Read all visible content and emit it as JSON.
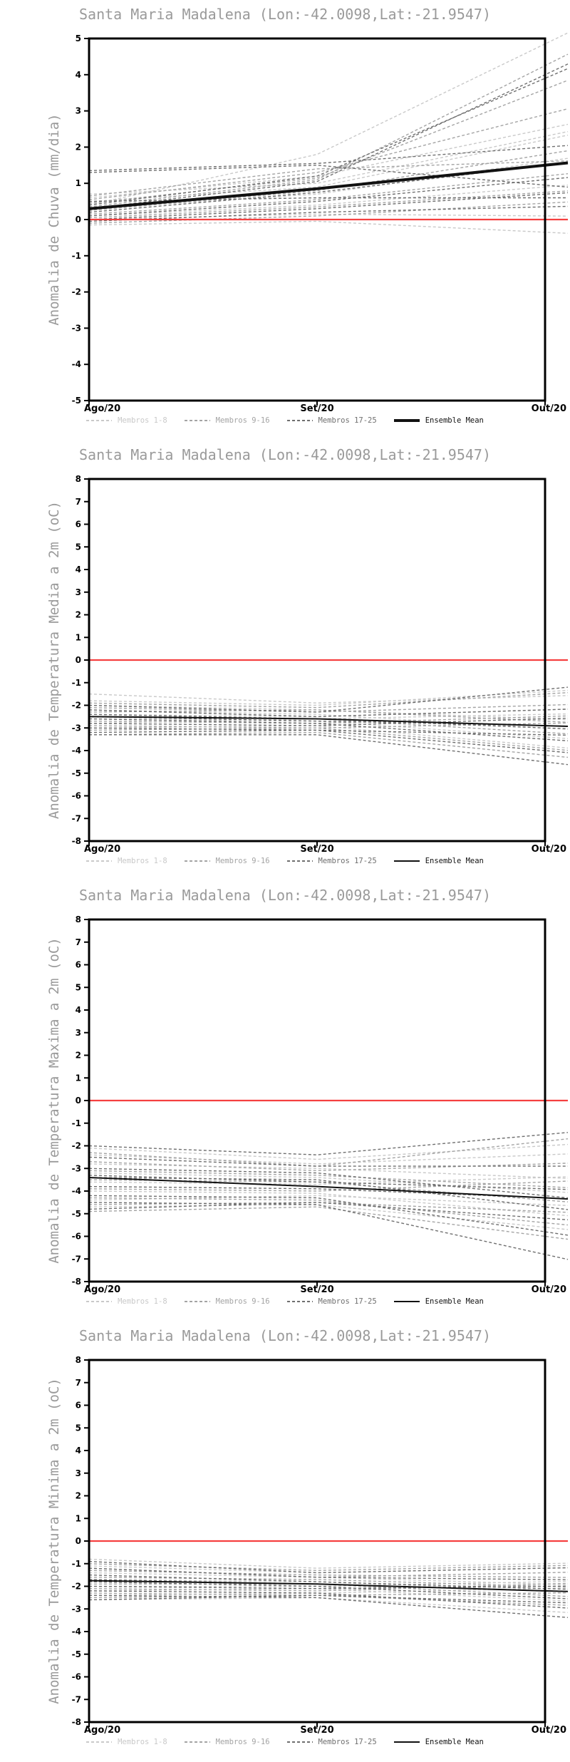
{
  "colors": {
    "background": "#ffffff",
    "title_text": "#9a9a9a",
    "ylabel_text": "#9a9a9a",
    "tick_text": "#000000",
    "axis_box": "#000000",
    "zero_line": "#f54040",
    "members_1_8": "#c9c9c9",
    "members_9_16": "#a4a4a4",
    "members_17_25": "#6f6f6f",
    "ensemble_mean": "#111111"
  },
  "chart_data": [
    {
      "type": "line",
      "title": "Santa Maria Madalena (Lon:-42.0098,Lat:-21.9547)",
      "ylabel": "Anomalia de Chuva (mm/dia)",
      "categories": [
        "Ago/20",
        "Set/20",
        "Out/20"
      ],
      "ylim": [
        -5,
        5
      ],
      "ytick_step": 1,
      "zero_line": 0,
      "grid": false,
      "legend_position": "bottom",
      "legend": [
        "Membros 1-8",
        "Membros 9-16",
        "Membros 17-25",
        "Ensemble Mean"
      ],
      "mean_line_width": 4,
      "groups": [
        {
          "name": "Membros 1-8",
          "series": [
            [
              0.4,
              1.8,
              4.85
            ],
            [
              0.6,
              1.2,
              2.5
            ],
            [
              0.7,
              1.0,
              2.3
            ],
            [
              0.3,
              0.7,
              1.6
            ],
            [
              0.1,
              0.4,
              0.9
            ],
            [
              0.0,
              0.15,
              0.1
            ],
            [
              -0.15,
              -0.05,
              -0.35
            ],
            [
              0.5,
              0.9,
              2.2
            ]
          ]
        },
        {
          "name": "Membros 9-16",
          "series": [
            [
              0.35,
              1.1,
              4.25
            ],
            [
              0.45,
              1.15,
              3.6
            ],
            [
              0.55,
              1.3,
              2.9
            ],
            [
              0.25,
              0.8,
              1.8
            ],
            [
              0.15,
              0.55,
              1.2
            ],
            [
              0.05,
              0.35,
              0.75
            ],
            [
              -0.1,
              0.1,
              0.45
            ],
            [
              0.65,
              1.4,
              1.6
            ]
          ]
        },
        {
          "name": "Membros 17-25",
          "series": [
            [
              0.3,
              1.05,
              4.0
            ],
            [
              0.4,
              1.2,
              3.9
            ],
            [
              1.35,
              1.55,
              2.0
            ],
            [
              1.3,
              1.5,
              0.95
            ],
            [
              0.2,
              0.75,
              1.5
            ],
            [
              0.1,
              0.5,
              1.1
            ],
            [
              0.0,
              0.3,
              0.7
            ],
            [
              -0.05,
              0.2,
              0.35
            ],
            [
              0.5,
              0.6,
              0.6
            ]
          ]
        }
      ],
      "mean": {
        "name": "Ensemble Mean",
        "values": [
          0.3,
          0.85,
          1.5
        ]
      }
    },
    {
      "type": "line",
      "title": "Santa Maria Madalena (Lon:-42.0098,Lat:-21.9547)",
      "ylabel": "Anomalia de Temperatura Media a 2m (oC)",
      "categories": [
        "Ago/20",
        "Set/20",
        "Out/20"
      ],
      "ylim": [
        -8,
        8
      ],
      "ytick_step": 1,
      "zero_line": 0,
      "grid": false,
      "legend_position": "bottom",
      "legend": [
        "Membros 1-8",
        "Membros 9-16",
        "Membros 17-25",
        "Ensemble Mean"
      ],
      "mean_line_width": 2,
      "groups": [
        {
          "name": "Membros 1-8",
          "series": [
            [
              -1.5,
              -1.9,
              -1.6
            ],
            [
              -1.8,
              -2.0,
              -1.4
            ],
            [
              -2.0,
              -2.2,
              -2.6
            ],
            [
              -2.2,
              -2.4,
              -3.0
            ],
            [
              -2.4,
              -2.5,
              -2.2
            ],
            [
              -2.6,
              -2.7,
              -3.4
            ],
            [
              -2.8,
              -2.6,
              -2.4
            ],
            [
              -3.0,
              -2.9,
              -3.8
            ]
          ]
        },
        {
          "name": "Membros 9-16",
          "series": [
            [
              -1.9,
              -2.1,
              -1.5
            ],
            [
              -2.1,
              -2.3,
              -2.0
            ],
            [
              -2.3,
              -2.2,
              -2.7
            ],
            [
              -2.5,
              -2.6,
              -3.2
            ],
            [
              -2.7,
              -2.8,
              -2.5
            ],
            [
              -2.9,
              -3.0,
              -3.9
            ],
            [
              -3.1,
              -3.0,
              -2.8
            ],
            [
              -3.3,
              -3.2,
              -4.2
            ]
          ]
        },
        {
          "name": "Membros 17-25",
          "series": [
            [
              -2.0,
              -2.3,
              -1.3
            ],
            [
              -2.2,
              -2.5,
              -2.2
            ],
            [
              -2.4,
              -2.6,
              -3.0
            ],
            [
              -2.6,
              -2.8,
              -3.5
            ],
            [
              -2.8,
              -2.9,
              -2.6
            ],
            [
              -3.0,
              -3.1,
              -4.0
            ],
            [
              -3.2,
              -3.1,
              -3.3
            ],
            [
              -3.3,
              -3.3,
              -4.5
            ],
            [
              -2.5,
              -2.7,
              -2.9
            ]
          ]
        }
      ],
      "mean": {
        "name": "Ensemble Mean",
        "values": [
          -2.5,
          -2.6,
          -2.9
        ]
      }
    },
    {
      "type": "line",
      "title": "Santa Maria Madalena (Lon:-42.0098,Lat:-21.9547)",
      "ylabel": "Anomalia de Temperatura Maxima a 2m (oC)",
      "categories": [
        "Ago/20",
        "Set/20",
        "Out/20"
      ],
      "ylim": [
        -8,
        8
      ],
      "ytick_step": 1,
      "zero_line": 0,
      "grid": false,
      "legend_position": "bottom",
      "legend": [
        "Membros 1-8",
        "Membros 9-16",
        "Membros 17-25",
        "Ensemble Mean"
      ],
      "mean_line_width": 2,
      "groups": [
        {
          "name": "Membros 1-8",
          "series": [
            [
              -2.1,
              -2.6,
              -2.0
            ],
            [
              -2.4,
              -2.8,
              -2.4
            ],
            [
              -2.8,
              -3.0,
              -3.4
            ],
            [
              -3.2,
              -3.4,
              -4.0
            ],
            [
              -3.6,
              -3.7,
              -3.4
            ],
            [
              -4.0,
              -4.1,
              -5.0
            ],
            [
              -4.4,
              -4.2,
              -4.6
            ],
            [
              -4.7,
              -4.6,
              -5.6
            ]
          ]
        },
        {
          "name": "Membros 9-16",
          "series": [
            [
              -2.3,
              -2.9,
              -1.8
            ],
            [
              -2.7,
              -3.1,
              -2.8
            ],
            [
              -3.1,
              -3.3,
              -3.8
            ],
            [
              -3.5,
              -3.6,
              -4.4
            ],
            [
              -3.9,
              -4.0,
              -3.6
            ],
            [
              -4.3,
              -4.4,
              -5.4
            ],
            [
              -4.6,
              -4.5,
              -4.9
            ],
            [
              -4.9,
              -4.7,
              -6.0
            ]
          ]
        },
        {
          "name": "Membros 17-25",
          "series": [
            [
              -2.0,
              -2.4,
              -1.5
            ],
            [
              -2.5,
              -2.9,
              -2.9
            ],
            [
              -3.0,
              -3.2,
              -4.2
            ],
            [
              -3.4,
              -3.5,
              -4.7
            ],
            [
              -3.8,
              -3.9,
              -4.3
            ],
            [
              -4.2,
              -4.3,
              -5.8
            ],
            [
              -4.5,
              -4.6,
              -6.8
            ],
            [
              -4.8,
              -4.5,
              -5.2
            ],
            [
              -3.3,
              -3.6,
              -3.9
            ]
          ]
        }
      ],
      "mean": {
        "name": "Ensemble Mean",
        "values": [
          -3.4,
          -3.8,
          -4.3
        ]
      }
    },
    {
      "type": "line",
      "title": "Santa Maria Madalena (Lon:-42.0098,Lat:-21.9547)",
      "ylabel": "Anomalia de Temperatura Minima a 2m (oC)",
      "categories": [
        "Ago/20",
        "Set/20",
        "Out/20"
      ],
      "ylim": [
        -8,
        8
      ],
      "ytick_step": 1,
      "zero_line": 0,
      "grid": false,
      "legend_position": "bottom",
      "legend": [
        "Membros 1-8",
        "Membros 9-16",
        "Membros 17-25",
        "Ensemble Mean"
      ],
      "mean_line_width": 2,
      "groups": [
        {
          "name": "Membros 1-8",
          "series": [
            [
              -0.8,
              -1.2,
              -1.0
            ],
            [
              -1.1,
              -1.4,
              -1.2
            ],
            [
              -1.4,
              -1.6,
              -1.9
            ],
            [
              -1.7,
              -1.8,
              -2.2
            ],
            [
              -2.0,
              -2.0,
              -1.8
            ],
            [
              -2.2,
              -2.1,
              -2.6
            ],
            [
              -2.4,
              -2.3,
              -2.1
            ],
            [
              -2.6,
              -2.5,
              -3.1
            ]
          ]
        },
        {
          "name": "Membros 9-16",
          "series": [
            [
              -1.0,
              -1.3,
              -1.1
            ],
            [
              -1.3,
              -1.5,
              -1.6
            ],
            [
              -1.6,
              -1.7,
              -2.0
            ],
            [
              -1.9,
              -1.9,
              -2.4
            ],
            [
              -2.1,
              -2.2,
              -1.9
            ],
            [
              -2.3,
              -2.4,
              -2.8
            ],
            [
              -2.5,
              -2.4,
              -2.3
            ],
            [
              -1.2,
              -1.6,
              -1.4
            ]
          ]
        },
        {
          "name": "Membros 17-25",
          "series": [
            [
              -0.9,
              -1.4,
              -1.2
            ],
            [
              -1.2,
              -1.6,
              -1.7
            ],
            [
              -1.5,
              -1.8,
              -2.1
            ],
            [
              -1.8,
              -2.0,
              -2.5
            ],
            [
              -2.0,
              -2.1,
              -2.0
            ],
            [
              -2.2,
              -2.3,
              -2.9
            ],
            [
              -2.4,
              -2.5,
              -3.3
            ],
            [
              -2.6,
              -2.4,
              -2.7
            ],
            [
              -1.7,
              -1.9,
              -2.2
            ]
          ]
        }
      ],
      "mean": {
        "name": "Ensemble Mean",
        "values": [
          -1.75,
          -1.9,
          -2.2
        ]
      }
    }
  ]
}
